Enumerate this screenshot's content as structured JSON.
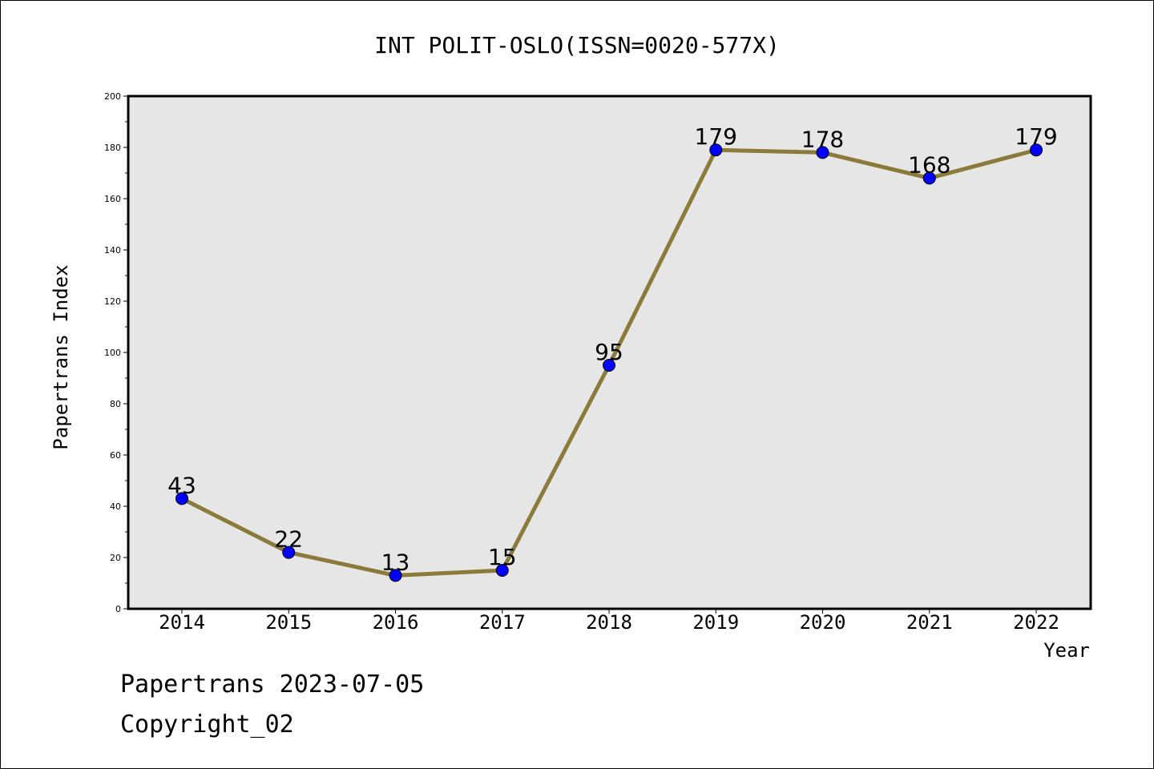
{
  "chart_data": {
    "type": "line",
    "title": "INT POLIT-OSLO(ISSN=0020-577X)",
    "xlabel": "Year",
    "ylabel": "Papertrans Index",
    "categories": [
      "2014",
      "2015",
      "2016",
      "2017",
      "2018",
      "2019",
      "2020",
      "2021",
      "2022"
    ],
    "values": [
      43,
      22,
      13,
      15,
      95,
      179,
      178,
      168,
      179
    ],
    "data_labels": [
      "43",
      "22",
      "13",
      "15",
      "95",
      "179",
      "178",
      "168",
      "179"
    ],
    "ylim": [
      0,
      200
    ],
    "yticks": [
      0,
      20,
      40,
      60,
      80,
      100,
      120,
      140,
      160,
      180,
      200
    ],
    "ytick_labels": [
      "0",
      "20",
      "40",
      "60",
      "80",
      "100",
      "120",
      "140",
      "160",
      "180",
      "200"
    ],
    "grid": false,
    "colors": {
      "line": "#8b7a3a",
      "marker": "#0000ff",
      "plot_bg": "#e6e6e6"
    }
  },
  "footer": {
    "line1": "Papertrans 2023-07-05",
    "line2": "Copyright_02"
  }
}
